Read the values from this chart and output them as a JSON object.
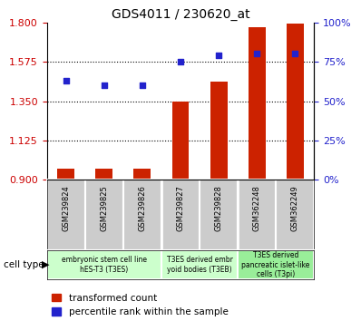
{
  "title": "GDS4011 / 230620_at",
  "samples": [
    "GSM239824",
    "GSM239825",
    "GSM239826",
    "GSM239827",
    "GSM239828",
    "GSM362248",
    "GSM362249"
  ],
  "transformed_count": [
    0.965,
    0.963,
    0.963,
    1.35,
    1.46,
    1.775,
    1.795
  ],
  "percentile_rank": [
    63,
    60,
    60,
    75,
    79,
    80,
    80
  ],
  "ylim_left": [
    0.9,
    1.8
  ],
  "yticks_left": [
    0.9,
    1.125,
    1.35,
    1.575,
    1.8
  ],
  "yticks_right": [
    0,
    25,
    50,
    75,
    100
  ],
  "bar_color": "#cc2200",
  "dot_color": "#2222cc",
  "group_xranges": [
    [
      -0.5,
      2.5
    ],
    [
      2.5,
      4.5
    ],
    [
      4.5,
      6.5
    ]
  ],
  "group_labels": [
    "embryonic stem cell line\nhES-T3 (T3ES)",
    "T3ES derived embr\nyoid bodies (T3EB)",
    "T3ES derived\npancreatic islet-like\ncells (T3pi)"
  ],
  "group_colors": [
    "#ccffcc",
    "#ccffcc",
    "#99ee99"
  ],
  "tick_label_color_left": "#cc0000",
  "tick_label_color_right": "#2222cc",
  "bar_width": 0.45,
  "bar_bottom": 0.9,
  "legend_items": [
    "transformed count",
    "percentile rank within the sample"
  ],
  "cell_type_label": "cell type"
}
